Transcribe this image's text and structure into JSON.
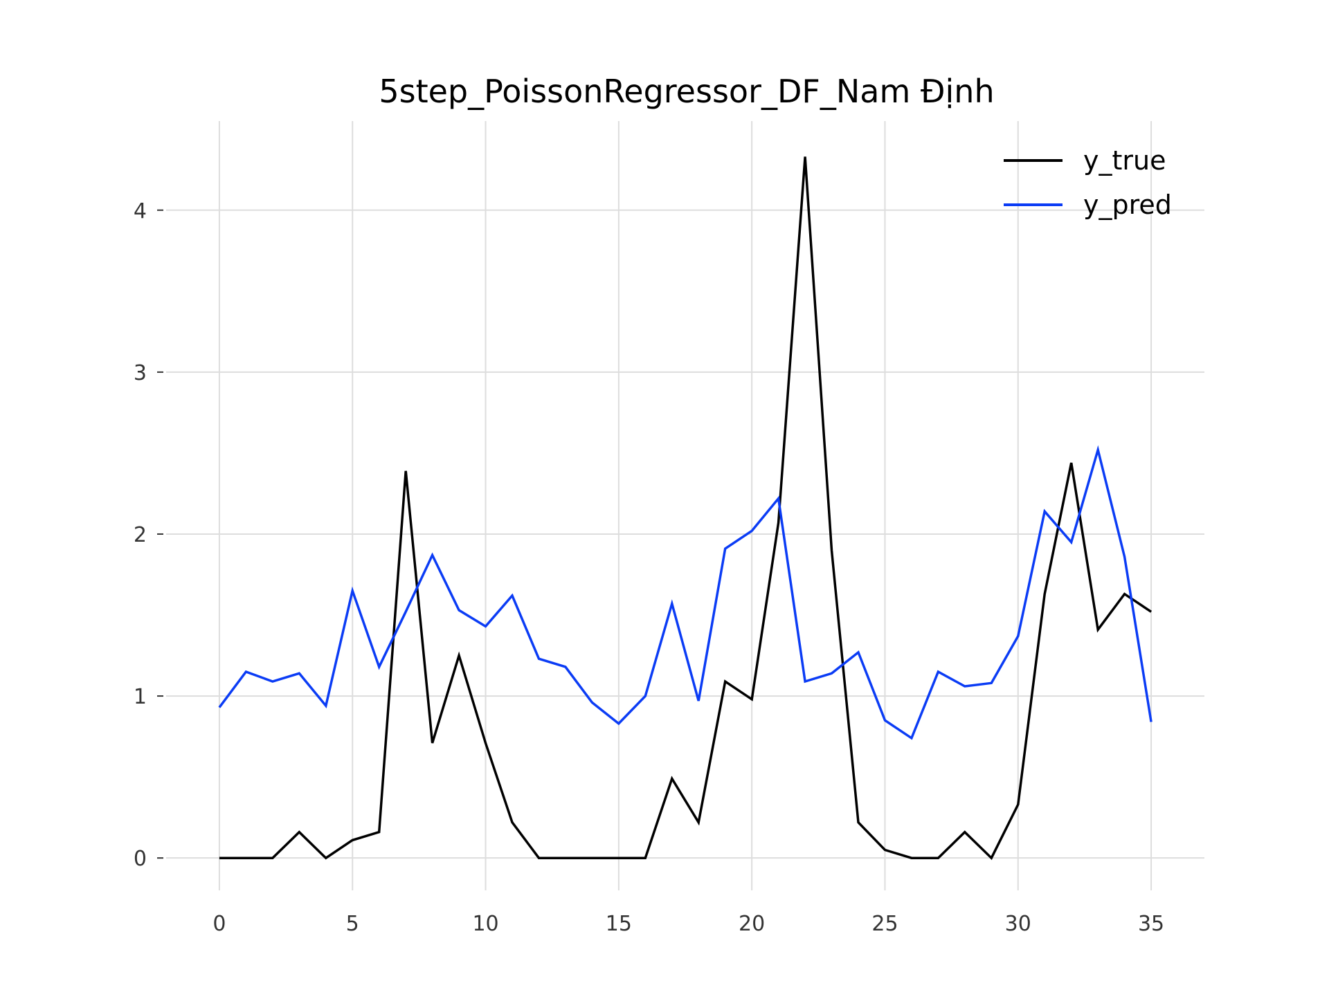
{
  "chart_data": {
    "type": "line",
    "title": "5step_PoissonRegressor_DF_Nam Định",
    "xlabel": "",
    "ylabel": "",
    "xlim": [
      -2,
      37
    ],
    "ylim": [
      -0.2,
      4.55
    ],
    "x_ticks": [
      0,
      5,
      10,
      15,
      20,
      25,
      30,
      35
    ],
    "y_ticks": [
      0,
      1,
      2,
      3,
      4
    ],
    "grid": true,
    "legend_position": "top-right",
    "x": [
      0,
      1,
      2,
      3,
      4,
      5,
      6,
      7,
      8,
      9,
      10,
      11,
      12,
      13,
      14,
      15,
      16,
      17,
      18,
      19,
      20,
      21,
      22,
      23,
      24,
      25,
      26,
      27,
      28,
      29,
      30,
      31,
      32,
      33,
      34,
      35
    ],
    "series": [
      {
        "name": "y_true",
        "color": "#000000",
        "values": [
          0,
          0,
          0,
          0.16,
          0,
          0.11,
          0.16,
          2.39,
          0.71,
          1.25,
          0.71,
          0.22,
          0,
          0,
          0,
          0,
          0,
          0.49,
          0.22,
          1.09,
          0.98,
          2.07,
          4.33,
          1.9,
          0.22,
          0.05,
          0,
          0,
          0.16,
          0,
          0.33,
          1.63,
          2.44,
          1.41,
          1.63,
          1.52
        ]
      },
      {
        "name": "y_pred",
        "color": "#0b3cf5",
        "values": [
          0.93,
          1.15,
          1.09,
          1.14,
          0.94,
          1.65,
          1.18,
          1.52,
          1.87,
          1.53,
          1.43,
          1.62,
          1.23,
          1.18,
          0.96,
          0.83,
          1.0,
          1.57,
          0.97,
          1.91,
          2.02,
          2.22,
          1.09,
          1.14,
          1.27,
          0.85,
          0.74,
          1.15,
          1.06,
          1.08,
          1.37,
          2.14,
          1.95,
          2.52,
          1.86,
          0.84
        ]
      }
    ]
  }
}
